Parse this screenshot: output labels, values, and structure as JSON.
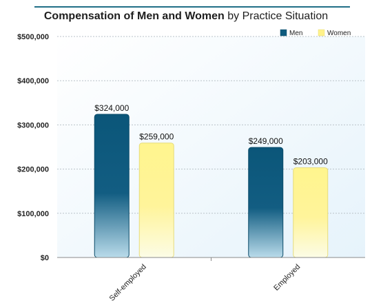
{
  "title_bold": "Compensation of Men and Women",
  "title_rest": " by Practice Situation",
  "chart_data": {
    "type": "bar",
    "title": "Compensation of Men and Women by Practice Situation",
    "categories": [
      "Self-employed",
      "Employed"
    ],
    "series": [
      {
        "name": "Men",
        "values": [
          324000,
          249000
        ],
        "labels": [
          "$324,000",
          "$249,000"
        ],
        "color": "#0d5a7e"
      },
      {
        "name": "Women",
        "values": [
          259000,
          203000
        ],
        "labels": [
          "$259,000",
          "$203,000"
        ],
        "color": "#fff28a"
      }
    ],
    "ylim": [
      0,
      500000
    ],
    "yticks": [
      0,
      100000,
      200000,
      300000,
      400000,
      500000
    ],
    "ytick_labels": [
      "$0",
      "$100,000",
      "$200,000",
      "$300,000",
      "$400,000",
      "$500,000"
    ],
    "grid": true,
    "legend_position": "top-right",
    "xlabel": "",
    "ylabel": ""
  }
}
